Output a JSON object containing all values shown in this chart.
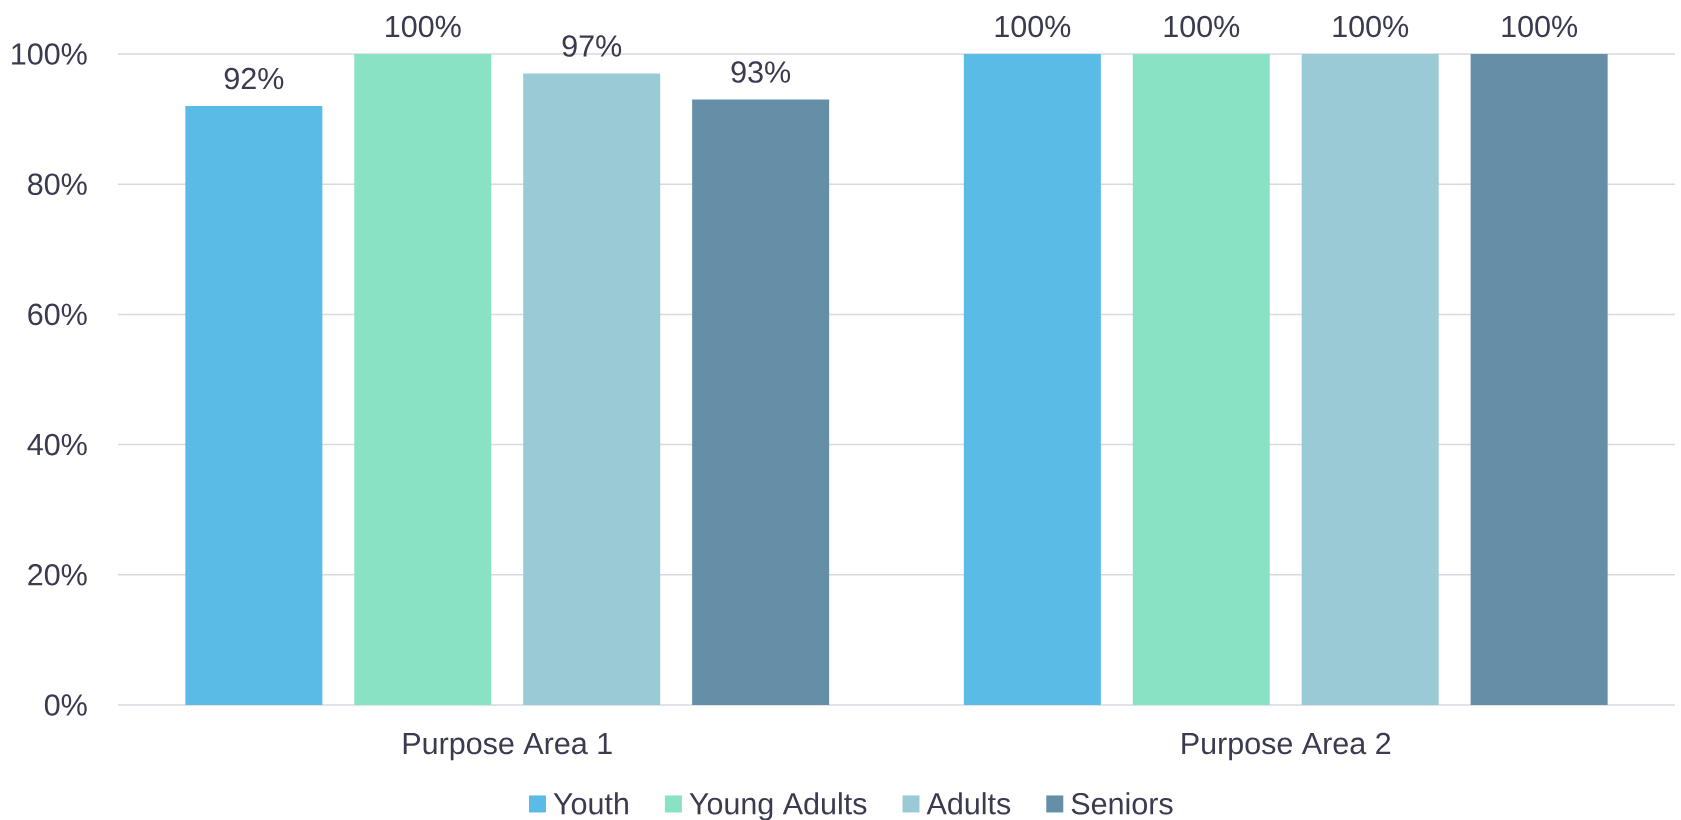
{
  "chart_data": {
    "type": "bar",
    "categories": [
      "Purpose Area 1",
      "Purpose Area 2"
    ],
    "series": [
      {
        "name": "Youth",
        "color": "#5abbe6",
        "values": [
          92,
          100
        ],
        "value_labels": [
          "92%",
          "100%"
        ]
      },
      {
        "name": "Young Adults",
        "color": "#8ae2c5",
        "values": [
          100,
          100
        ],
        "value_labels": [
          "100%",
          "100%"
        ]
      },
      {
        "name": "Adults",
        "color": "#9bcad7",
        "values": [
          97,
          100
        ],
        "value_labels": [
          "97%",
          "100%"
        ]
      },
      {
        "name": "Seniors",
        "color": "#648fa7",
        "values": [
          93,
          100
        ],
        "value_labels": [
          "93%",
          "100%"
        ]
      }
    ],
    "ylim": [
      0,
      100
    ],
    "yticks": [
      {
        "value": 0,
        "label": "0%"
      },
      {
        "value": 20,
        "label": "20%"
      },
      {
        "value": 40,
        "label": "40%"
      },
      {
        "value": 60,
        "label": "60%"
      },
      {
        "value": 80,
        "label": "80%"
      },
      {
        "value": 100,
        "label": "100%"
      }
    ],
    "grid": "y",
    "legend": "bottom"
  }
}
